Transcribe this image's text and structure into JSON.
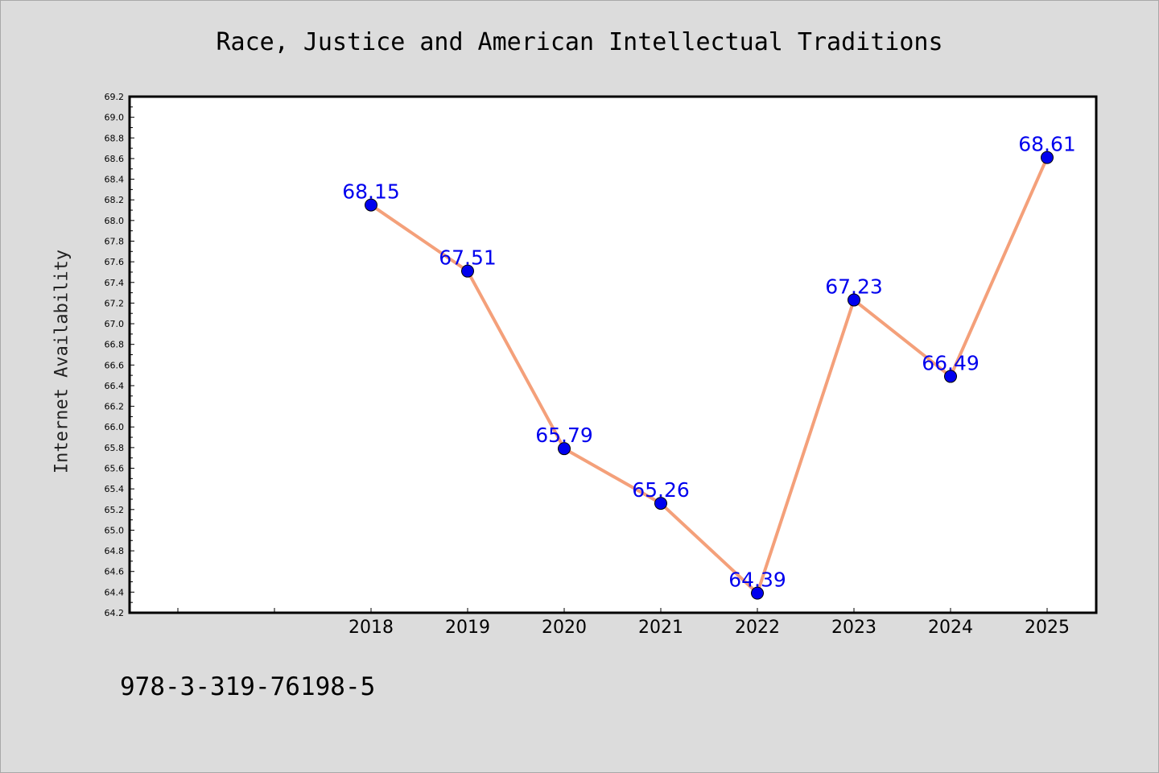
{
  "figure": {
    "title": "Race, Justice and American Intellectual Traditions",
    "footer": "978-3-319-76198-5"
  },
  "chart_data": {
    "type": "line",
    "title": "Race, Justice and American Intellectual Traditions",
    "xlabel": "",
    "ylabel": "Internet Availability",
    "categories": [
      "2018",
      "2019",
      "2020",
      "2021",
      "2022",
      "2023",
      "2024",
      "2025"
    ],
    "series": [
      {
        "values": [
          68.15,
          67.51,
          65.79,
          65.26,
          64.39,
          67.23,
          66.49,
          68.61
        ],
        "labels": [
          "68.15",
          "67.51",
          "65.79",
          "65.26",
          "64.39",
          "67.23",
          "66.49",
          "68.61"
        ],
        "line_color": "#f4a07a",
        "marker_color": "#0000ee",
        "label_color": "#0000ee"
      }
    ],
    "ylim": [
      64.2,
      69.2
    ],
    "y_ticks": [
      "64.2",
      "64.4",
      "64.6",
      "64.8",
      "65.0",
      "65.2",
      "65.4",
      "65.6",
      "65.8",
      "66.0",
      "66.2",
      "66.4",
      "66.6",
      "66.8",
      "67.0",
      "67.2",
      "67.4",
      "67.6",
      "67.8",
      "68.0",
      "68.2",
      "68.4",
      "68.6",
      "68.8",
      "69.0",
      "69.2"
    ],
    "grid": false,
    "legend": "none"
  }
}
